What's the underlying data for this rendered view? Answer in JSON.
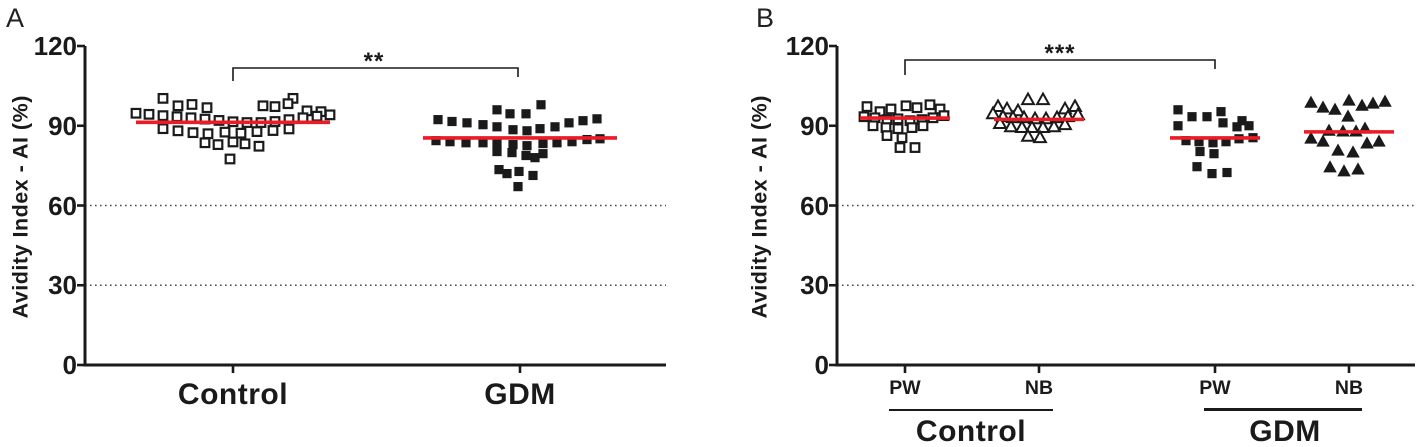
{
  "figure_colors": {
    "ink": "#1a1a1a",
    "median_red": "#ec1c24",
    "background": "#ffffff"
  },
  "chart_data": [
    {
      "type": "scatter",
      "panel": "A",
      "ylabel": "Avidity Index - AI (%)",
      "ylim": [
        0,
        120
      ],
      "yticks": [
        0,
        30,
        60,
        90,
        120
      ],
      "dotted_gridlines": [
        30,
        60
      ],
      "grid": "dotted-horizontal-only",
      "legend_position": "none",
      "median_color": "#ec1c24",
      "significance": {
        "label": "**",
        "from": "Control",
        "to": "GDM"
      },
      "series": [
        {
          "name": "Control",
          "marker": "open-square",
          "median": 91.3,
          "points": [
            [
              -70,
              100.3
            ],
            [
              60,
              100.3
            ],
            [
              -55,
              97.5
            ],
            [
              -41,
              98.0
            ],
            [
              -26,
              96.8
            ],
            [
              30,
              97.5
            ],
            [
              42,
              97.2
            ],
            [
              55,
              98.3
            ],
            [
              74,
              95.6
            ],
            [
              88,
              95.3
            ],
            [
              -97,
              94.7
            ],
            [
              -84,
              94.3
            ],
            [
              -70,
              93.8
            ],
            [
              -56,
              93.4
            ],
            [
              -42,
              93.0
            ],
            [
              -28,
              92.5
            ],
            [
              -14,
              92.0
            ],
            [
              0,
              91.5
            ],
            [
              14,
              91.2
            ],
            [
              28,
              91.2
            ],
            [
              42,
              91.6
            ],
            [
              56,
              92.3
            ],
            [
              70,
              93.0
            ],
            [
              84,
              93.6
            ],
            [
              97,
              94.1
            ],
            [
              -70,
              88.9
            ],
            [
              -55,
              88.1
            ],
            [
              -40,
              87.4
            ],
            [
              -25,
              87.0
            ],
            [
              -8,
              87.6
            ],
            [
              8,
              87.2
            ],
            [
              24,
              87.8
            ],
            [
              40,
              88.2
            ],
            [
              56,
              88.8
            ],
            [
              -28,
              83.6
            ],
            [
              -15,
              82.9
            ],
            [
              0,
              83.9
            ],
            [
              12,
              83.2
            ],
            [
              26,
              82.3
            ],
            [
              -3,
              77.5
            ]
          ]
        },
        {
          "name": "GDM",
          "marker": "filled-square",
          "median": 85.4,
          "points": [
            [
              -82,
              92.3
            ],
            [
              -68,
              91.6
            ],
            [
              -53,
              91.1
            ],
            [
              -37,
              90.4
            ],
            [
              -23,
              96.0
            ],
            [
              -10,
              94.5
            ],
            [
              6,
              94.5
            ],
            [
              21,
              97.9
            ],
            [
              -23,
              89.6
            ],
            [
              -7,
              88.5
            ],
            [
              7,
              88.1
            ],
            [
              20,
              88.9
            ],
            [
              35,
              89.6
            ],
            [
              49,
              91.1
            ],
            [
              63,
              91.9
            ],
            [
              77,
              92.6
            ],
            [
              -84,
              84.4
            ],
            [
              -70,
              84.0
            ],
            [
              -54,
              83.6
            ],
            [
              -37,
              83.6
            ],
            [
              -23,
              83.3
            ],
            [
              -7,
              82.9
            ],
            [
              7,
              82.5
            ],
            [
              23,
              83.3
            ],
            [
              37,
              83.6
            ],
            [
              52,
              84.0
            ],
            [
              67,
              84.8
            ],
            [
              80,
              85.1
            ],
            [
              -23,
              80.3
            ],
            [
              -8,
              79.9
            ],
            [
              6,
              78.8
            ],
            [
              15,
              78.0
            ],
            [
              23,
              79.5
            ],
            [
              -21,
              73.5
            ],
            [
              -13,
              72.0
            ],
            [
              -1,
              72.8
            ],
            [
              13,
              71.3
            ],
            [
              -2,
              67.1
            ]
          ]
        }
      ]
    },
    {
      "type": "scatter",
      "panel": "B",
      "ylabel": "Avidity Index - AI (%)",
      "ylim": [
        0,
        120
      ],
      "yticks": [
        0,
        30,
        60,
        90,
        120
      ],
      "dotted_gridlines": [
        30,
        60
      ],
      "grid": "dotted-horizontal-only",
      "legend_position": "none",
      "median_color": "#ec1c24",
      "significance": {
        "label": "***",
        "from": "Control PW",
        "to": "GDM PW"
      },
      "families": [
        {
          "label": "Control"
        },
        {
          "label": "GDM"
        }
      ],
      "series": [
        {
          "name": "PW",
          "family": "Control",
          "marker": "open-square",
          "median": 92.9,
          "points": [
            [
              -38,
              97.2
            ],
            [
              -25,
              95.3
            ],
            [
              -14,
              96.3
            ],
            [
              1,
              97.5
            ],
            [
              12,
              96.8
            ],
            [
              25,
              97.9
            ],
            [
              35,
              96.3
            ],
            [
              -41,
              93.4
            ],
            [
              -30,
              93.0
            ],
            [
              -18,
              92.3
            ],
            [
              -7,
              92.6
            ],
            [
              5,
              91.9
            ],
            [
              17,
              92.3
            ],
            [
              28,
              93.0
            ],
            [
              39,
              93.8
            ],
            [
              -32,
              90.0
            ],
            [
              -19,
              89.3
            ],
            [
              -7,
              88.9
            ],
            [
              7,
              89.3
            ],
            [
              18,
              90.0
            ],
            [
              -18,
              86.3
            ],
            [
              -3,
              85.5
            ],
            [
              -5,
              81.8
            ],
            [
              10,
              81.8
            ]
          ]
        },
        {
          "name": "NB",
          "family": "Control",
          "marker": "open-triangle",
          "median": 92.4,
          "points": [
            [
              -11,
              99.8
            ],
            [
              4,
              99.8
            ],
            [
              -41,
              97.2
            ],
            [
              -32,
              96.3
            ],
            [
              -21,
              95.6
            ],
            [
              26,
              96.3
            ],
            [
              36,
              97.2
            ],
            [
              -46,
              94.5
            ],
            [
              -36,
              93.4
            ],
            [
              -26,
              93.0
            ],
            [
              -15,
              93.0
            ],
            [
              -4,
              92.6
            ],
            [
              7,
              92.6
            ],
            [
              18,
              93.0
            ],
            [
              29,
              93.4
            ],
            [
              39,
              94.1
            ],
            [
              -39,
              90.8
            ],
            [
              -28,
              89.6
            ],
            [
              -17,
              89.3
            ],
            [
              -7,
              89.3
            ],
            [
              4,
              89.3
            ],
            [
              15,
              89.6
            ],
            [
              26,
              90.4
            ],
            [
              -11,
              86.0
            ],
            [
              1,
              85.5
            ]
          ]
        },
        {
          "name": "PW",
          "family": "GDM",
          "marker": "filled-square",
          "median": 85.4,
          "points": [
            [
              -37,
              96.0
            ],
            [
              -23,
              93.4
            ],
            [
              -8,
              93.4
            ],
            [
              6,
              95.3
            ],
            [
              8,
              91.1
            ],
            [
              22,
              89.6
            ],
            [
              27,
              91.9
            ],
            [
              34,
              90.0
            ],
            [
              -37,
              90.0
            ],
            [
              -29,
              84.4
            ],
            [
              -16,
              84.0
            ],
            [
              -2,
              83.6
            ],
            [
              11,
              84.0
            ],
            [
              24,
              85.1
            ],
            [
              38,
              85.5
            ],
            [
              -15,
              80.3
            ],
            [
              -1,
              79.5
            ],
            [
              -18,
              74.6
            ],
            [
              -3,
              72.0
            ],
            [
              12,
              72.4
            ]
          ]
        },
        {
          "name": "NB",
          "family": "GDM",
          "marker": "filled-triangle",
          "median": 87.7,
          "points": [
            [
              -38,
              98.6
            ],
            [
              -26,
              96.8
            ],
            [
              -14,
              96.0
            ],
            [
              0,
              99.4
            ],
            [
              13,
              97.5
            ],
            [
              24,
              98.3
            ],
            [
              36,
              99.0
            ],
            [
              -1,
              93.4
            ],
            [
              -20,
              88.1
            ],
            [
              -6,
              87.8
            ],
            [
              7,
              87.8
            ],
            [
              16,
              88.9
            ],
            [
              -38,
              85.1
            ],
            [
              -26,
              84.0
            ],
            [
              -11,
              80.6
            ],
            [
              4,
              79.9
            ],
            [
              18,
              83.3
            ],
            [
              30,
              84.0
            ],
            [
              -19,
              74.3
            ],
            [
              -5,
              72.8
            ],
            [
              9,
              73.5
            ]
          ]
        }
      ]
    }
  ]
}
